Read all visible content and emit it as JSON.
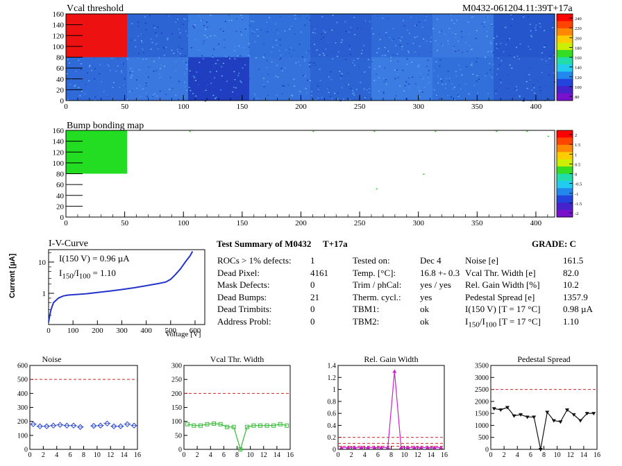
{
  "header": {
    "left_title": "Vcal threshold",
    "right_title": "M0432-061204.11:39T+17a"
  },
  "map1": {
    "title": "Vcal threshold",
    "x_ticks": [
      "0",
      "50",
      "100",
      "150",
      "200",
      "250",
      "300",
      "350",
      "400"
    ],
    "y_ticks": [
      "0",
      "20",
      "40",
      "60",
      "80",
      "100",
      "120",
      "140",
      "160"
    ],
    "palette_ticks": [
      "240",
      "220",
      "200",
      "180",
      "160",
      "140",
      "120",
      "100",
      "80"
    ]
  },
  "map2": {
    "title": "Bump bonding map",
    "x_ticks": [
      "0",
      "50",
      "100",
      "150",
      "200",
      "250",
      "300",
      "350",
      "400"
    ],
    "y_ticks": [
      "0",
      "20",
      "40",
      "60",
      "80",
      "100",
      "120",
      "140",
      "160"
    ],
    "palette_ticks": [
      "2",
      "1.5",
      "1",
      "0.5",
      "0",
      "-0.5",
      "-1",
      "-1.5",
      "-2"
    ]
  },
  "iv": {
    "title": "I-V-Curve",
    "ylabel": "Current [µA]",
    "xlabel": "Voltage [V]",
    "note1": "I(150 V) = 0.96 µA",
    "note2_pre": "I",
    "note2_sub1": "150",
    "note2_mid": "/I",
    "note2_sub2": "100",
    "note2_post": "=  1.10",
    "x_ticks": [
      "0",
      "100",
      "200",
      "300",
      "400",
      "500",
      "600"
    ],
    "y_ticks": [
      "1",
      "10"
    ]
  },
  "summary": {
    "title": "Test Summary of M0432",
    "tag": "T+17a",
    "grade_label": "GRADE:  C",
    "col1": [
      {
        "label": "ROCs > 1% defects:",
        "value": "1"
      },
      {
        "label": "Dead Pixel:",
        "value": "4161"
      },
      {
        "label": "Mask Defects:",
        "value": "0"
      },
      {
        "label": "Dead Bumps:",
        "value": "21"
      },
      {
        "label": "Dead Trimbits:",
        "value": "0"
      },
      {
        "label": "Address Probl:",
        "value": "0"
      }
    ],
    "col2": [
      {
        "label": "Tested on:",
        "value": "Dec 4"
      },
      {
        "label": "Temp. [°C]:",
        "value": "16.8 +- 0.3"
      },
      {
        "label": "Trim / phCal:",
        "value": "yes / yes"
      },
      {
        "label": "Therm. cycl.:",
        "value": "yes"
      },
      {
        "label": "TBM1:",
        "value": "ok"
      },
      {
        "label": "TBM2:",
        "value": "ok"
      }
    ],
    "col3": [
      {
        "label": "Noise [e]",
        "value": "161.5"
      },
      {
        "label": "Vcal Thr. Width [e]",
        "value": "82.0"
      },
      {
        "label": "Rel. Gain Width [%]",
        "value": "10.2"
      },
      {
        "label": "Pedestal Spread [e]",
        "value": "1357.9"
      },
      {
        "label": "I(150 V)  [T = 17 °C]",
        "value": "0.98 µA"
      }
    ],
    "col3_last": {
      "pre": "I",
      "sub1": "150",
      "mid": "/I",
      "sub2": "100",
      "post": "  [T = 17 °C]",
      "value": "1.10"
    }
  },
  "chart_data": [
    {
      "type": "heatmap",
      "title": "Vcal threshold",
      "xlim": [
        0,
        416
      ],
      "ylim": [
        0,
        160
      ],
      "zlim": [
        80,
        250
      ],
      "colors": {
        "high_block": "#ee1111",
        "base": "#2a6fd8"
      },
      "note": "ROC 0 (cols 0-52, rows 80-160) saturated high; rest around 100-120"
    },
    {
      "type": "heatmap",
      "title": "Bump bonding map",
      "xlim": [
        0,
        416
      ],
      "ylim": [
        0,
        160
      ],
      "zlim": [
        -2,
        2
      ],
      "colors": {
        "dead_block": "#22dd22"
      }
    },
    {
      "type": "line",
      "title": "I-V-Curve",
      "xlabel": "Voltage [V]",
      "ylabel": "Current [µA]",
      "xlim": [
        0,
        640
      ],
      "ylim": [
        0.1,
        25
      ],
      "yscale": "log",
      "x": [
        0,
        5,
        10,
        20,
        40,
        60,
        80,
        100,
        150,
        200,
        250,
        300,
        350,
        400,
        450,
        480,
        500,
        520,
        540,
        560,
        580,
        590
      ],
      "y": [
        0.12,
        0.2,
        0.3,
        0.5,
        0.7,
        0.82,
        0.88,
        0.9,
        0.96,
        1.06,
        1.18,
        1.32,
        1.5,
        1.75,
        2.05,
        2.3,
        2.8,
        4.0,
        6.0,
        10.0,
        16.0,
        22.0
      ],
      "color": "#2233cc"
    },
    {
      "type": "scatter",
      "title": "Noise",
      "xlim": [
        0,
        16
      ],
      "ylim": [
        0,
        600
      ],
      "x_ticks": [
        "0",
        "2",
        "4",
        "6",
        "8",
        "10",
        "12",
        "14",
        "16"
      ],
      "y_ticks": [
        "0",
        "100",
        "200",
        "300",
        "400",
        "500",
        "600"
      ],
      "x": [
        0,
        1,
        2,
        3,
        4,
        5,
        6,
        7,
        9,
        10,
        11,
        12,
        13,
        14,
        15
      ],
      "y": [
        180,
        165,
        165,
        170,
        175,
        170,
        170,
        160,
        168,
        170,
        185,
        165,
        165,
        180,
        170
      ],
      "threshold": 500,
      "color": "#2244cc",
      "threshold_color": "#cc2222"
    },
    {
      "type": "line",
      "title": "Vcal Thr. Width",
      "xlim": [
        0,
        16
      ],
      "ylim": [
        0,
        300
      ],
      "x_ticks": [
        "0",
        "2",
        "4",
        "6",
        "8",
        "10",
        "12",
        "14",
        "16"
      ],
      "y_ticks": [
        "0",
        "50",
        "100",
        "150",
        "200",
        "250",
        "300"
      ],
      "x": [
        0,
        1,
        2,
        3,
        4,
        5,
        6,
        7,
        8,
        9,
        10,
        11,
        12,
        13,
        14,
        15
      ],
      "y": [
        90,
        85,
        85,
        90,
        92,
        90,
        80,
        80,
        0,
        80,
        85,
        85,
        85,
        85,
        90,
        85
      ],
      "threshold": 200,
      "color": "#33bb33",
      "threshold_color": "#cc2222"
    },
    {
      "type": "line",
      "title": "Rel. Gain Width",
      "xlim": [
        0,
        16
      ],
      "ylim": [
        0,
        1.4
      ],
      "x_ticks": [
        "0",
        "2",
        "4",
        "6",
        "8",
        "10",
        "12",
        "14",
        "16"
      ],
      "y_ticks": [
        "0",
        "0.2",
        "0.4",
        "0.6",
        "0.8",
        "1",
        "1.2",
        "1.4"
      ],
      "x": [
        0,
        1,
        2,
        3,
        4,
        5,
        6,
        7,
        8,
        9,
        10,
        11,
        12,
        13,
        14,
        15
      ],
      "y": [
        0.03,
        0.03,
        0.03,
        0.03,
        0.03,
        0.03,
        0.03,
        0.03,
        1.3,
        0.03,
        0.03,
        0.03,
        0.03,
        0.03,
        0.03,
        0.03
      ],
      "thresholds": [
        0.2,
        0.1,
        0.05
      ],
      "color": "#cc22cc",
      "threshold_color": "#cc2222"
    },
    {
      "type": "line",
      "title": "Pedestal Spread",
      "xlim": [
        0,
        16
      ],
      "ylim": [
        0,
        3500
      ],
      "x_ticks": [
        "0",
        "2",
        "4",
        "6",
        "8",
        "10",
        "12",
        "14",
        "16"
      ],
      "y_ticks": [
        "0",
        "500",
        "1000",
        "1500",
        "2000",
        "2500",
        "3000",
        "3500"
      ],
      "x": [
        0,
        1,
        2,
        3,
        4,
        5,
        6,
        7,
        8,
        9,
        10,
        11,
        12,
        13,
        14,
        15
      ],
      "y": [
        1700,
        1650,
        1750,
        1400,
        1450,
        1350,
        1350,
        0,
        1550,
        1200,
        1150,
        1650,
        1450,
        1200,
        1500,
        1500
      ],
      "threshold": 2500,
      "color": "#111111",
      "threshold_color": "#cc2222"
    }
  ]
}
